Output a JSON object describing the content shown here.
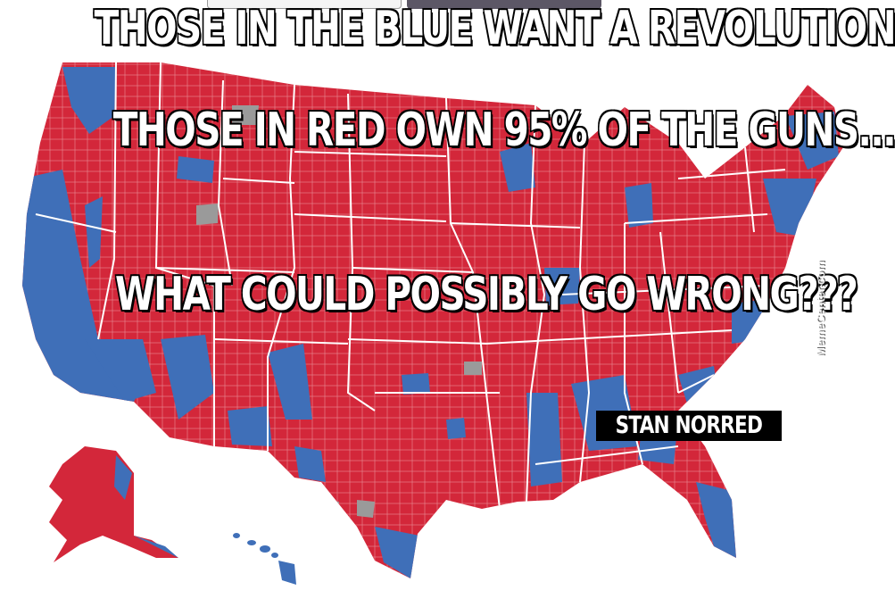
{
  "captions": {
    "line1": "THOSE IN THE BLUE WANT A REVOLUTION",
    "line2": "THOSE IN RED OWN 95% OF THE GUNS...",
    "line3": "WHAT COULD POSSIBLY GO WRONG???"
  },
  "signature": "STAN NORRED",
  "watermark": "MemeCenter.com",
  "colors": {
    "red": "#d3273a",
    "blue": "#3f6fb8",
    "gray": "#9a9a9a",
    "borders": "#ffffff"
  }
}
